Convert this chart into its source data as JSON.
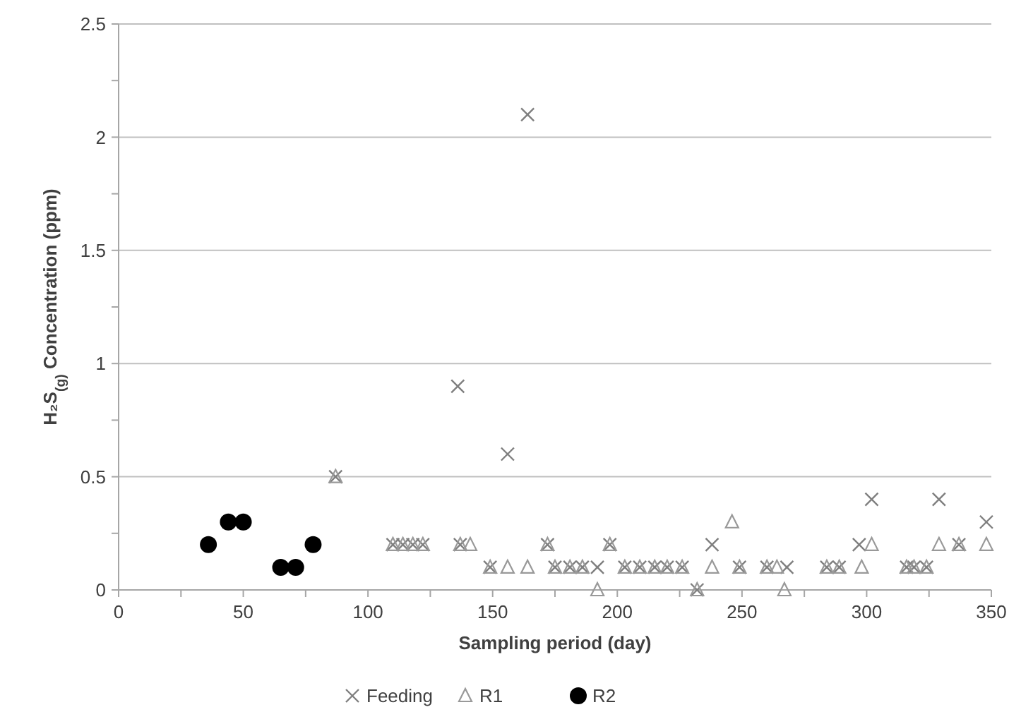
{
  "chart_data": {
    "type": "scatter",
    "xlabel": "Sampling period (day)",
    "ylabel": "H₂S$_{(g)}$ Concentration (ppm)",
    "xlim": [
      0,
      350
    ],
    "ylim": [
      0,
      2.5
    ],
    "xticks": [
      0,
      {
        "value": 25,
        "label": null
      },
      50,
      {
        "value": 75,
        "label": null
      },
      100,
      {
        "value": 125,
        "label": null
      },
      150,
      {
        "value": 175,
        "label": null
      },
      200,
      {
        "value": 225,
        "label": null
      },
      250,
      {
        "value": 275,
        "label": null
      },
      300,
      {
        "value": 325,
        "label": null
      },
      350
    ],
    "yticks": [
      0,
      {
        "value": 0.25,
        "label": null
      },
      0.5,
      {
        "value": 0.75,
        "label": null
      },
      1,
      {
        "value": 1.25,
        "label": null
      },
      1.5,
      {
        "value": 1.75,
        "label": null
      },
      2,
      {
        "value": 2.25,
        "label": null
      },
      2.5
    ],
    "grid": "y",
    "legend": "bottom",
    "series": [
      {
        "name": "Feeding",
        "color": "#7f7f7f",
        "marker": "cross",
        "x": [
          87,
          110,
          114,
          118,
          122,
          136,
          137,
          149,
          156,
          164,
          172,
          175,
          181,
          186,
          192,
          197,
          203,
          209,
          215,
          220,
          226,
          232,
          238,
          249,
          260,
          268,
          284,
          289,
          297,
          302,
          316,
          319,
          324,
          329,
          337,
          348
        ],
        "values": [
          0.5,
          0.2,
          0.2,
          0.2,
          0.2,
          0.9,
          0.2,
          0.1,
          0.6,
          2.1,
          0.2,
          0.1,
          0.1,
          0.1,
          0.1,
          0.2,
          0.1,
          0.1,
          0.1,
          0.1,
          0.1,
          0,
          0.2,
          0.1,
          0.1,
          0.1,
          0.1,
          0.1,
          0.2,
          0.4,
          0.1,
          0.1,
          0.1,
          0.4,
          0.2,
          0.3
        ]
      },
      {
        "name": "R1",
        "color": "#999999",
        "marker": "triangle",
        "x": [
          87,
          110,
          114,
          118,
          122,
          137,
          141,
          149,
          156,
          164,
          172,
          175,
          181,
          186,
          192,
          197,
          203,
          209,
          215,
          220,
          226,
          232,
          238,
          246,
          249,
          260,
          264,
          267,
          284,
          289,
          298,
          302,
          316,
          319,
          324,
          329,
          337,
          348
        ],
        "values": [
          0.5,
          0.2,
          0.2,
          0.2,
          0.2,
          0.2,
          0.2,
          0.1,
          0.1,
          0.1,
          0.2,
          0.1,
          0.1,
          0.1,
          0,
          0.2,
          0.1,
          0.1,
          0.1,
          0.1,
          0.1,
          0,
          0.1,
          0.3,
          0.1,
          0.1,
          0.1,
          0,
          0.1,
          0.1,
          0.1,
          0.2,
          0.1,
          0.1,
          0.1,
          0.2,
          0.2,
          0.2
        ]
      },
      {
        "name": "R2",
        "color": "#000000",
        "marker": "circle",
        "x": [
          36,
          44,
          50,
          65,
          71,
          78
        ],
        "values": [
          0.2,
          0.3,
          0.3,
          0.1,
          0.1,
          0.2
        ]
      }
    ]
  }
}
